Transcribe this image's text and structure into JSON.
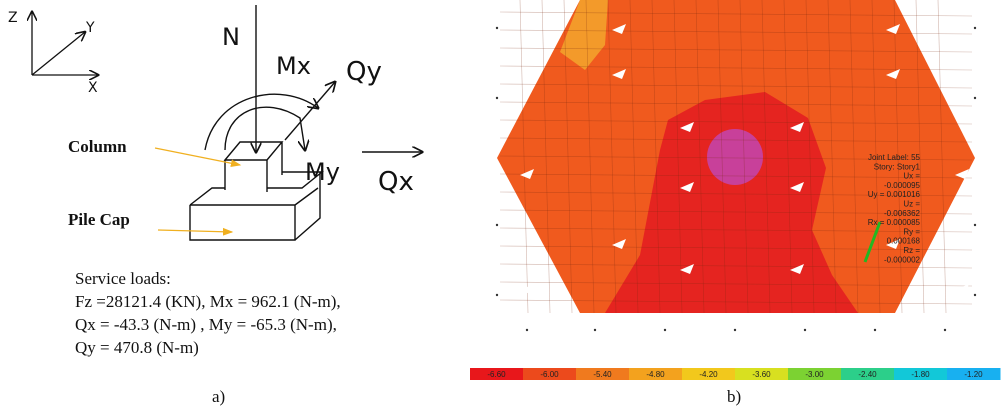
{
  "panel_a": {
    "axes": {
      "z": "Z",
      "y": "Y",
      "x": "X"
    },
    "loads": {
      "n": "N",
      "mx": "Mx",
      "qy": "Qy",
      "my": "My",
      "qx": "Qx"
    },
    "labels": {
      "column": "Column",
      "pile_cap": "Pile Cap"
    },
    "service_loads": {
      "title": "Service loads:",
      "lines": [
        "Fz =28121.4 (KN), Mx = 962.1 (N-m),",
        "Qx = -43.3 (N-m) , My = -65.3 (N-m),",
        "Qy = 470.8 (N-m)"
      ]
    },
    "caption": "a)"
  },
  "panel_b": {
    "joint_info": [
      "Joint Label: 55",
      "Story: Story1",
      "Ux =",
      "-0.000095",
      "Uy = 0.001016",
      "Uz =",
      "-0.006362",
      "Rx = 0.000085",
      "Ry =",
      "0.000168",
      "Rz =",
      "-0.000002"
    ],
    "colorbar_labels": [
      "-6.60",
      "-6.00",
      "-5.40",
      "-4.80",
      "-4.20",
      "-3.60",
      "-3.00",
      "-2.40",
      "-1.80",
      "-1.20"
    ],
    "caption": "b)"
  }
}
